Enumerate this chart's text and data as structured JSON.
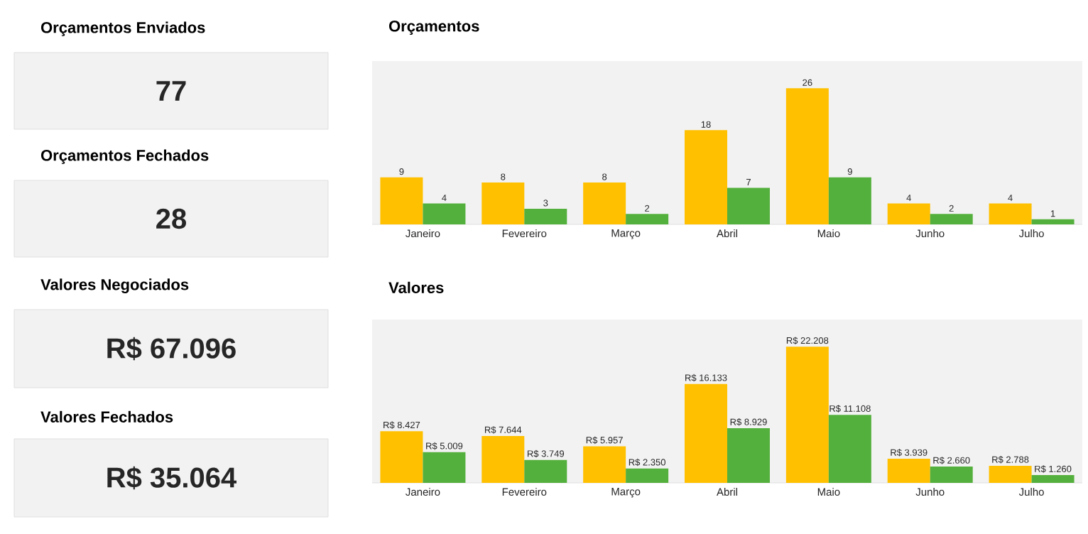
{
  "chart_data": [
    {
      "type": "other",
      "title": "Orçamentos Enviados",
      "annotations": [
        "77"
      ]
    },
    {
      "type": "other",
      "title": "Orçamentos Fechados",
      "annotations": [
        "28"
      ]
    },
    {
      "type": "other",
      "title": "Valores Negociados",
      "annotations": [
        "R$ 67.096"
      ]
    },
    {
      "type": "other",
      "title": "Valores Fechados",
      "annotations": [
        "R$ 35.064"
      ]
    },
    {
      "type": "bar",
      "title": "Orçamentos",
      "categories": [
        "Janeiro",
        "Fevereiro",
        "Março",
        "Abril",
        "Maio",
        "Junho",
        "Julho"
      ],
      "data_labels": true,
      "series": [
        {
          "color": "#ffc000",
          "values": [
            9,
            8,
            8,
            18,
            26,
            4,
            4
          ]
        },
        {
          "color": "#54b03c",
          "values": [
            4,
            3,
            2,
            7,
            9,
            2,
            1
          ]
        }
      ]
    },
    {
      "type": "bar",
      "title": "Valores",
      "categories": [
        "Janeiro",
        "Fevereiro",
        "Março",
        "Abril",
        "Maio",
        "Junho",
        "Julho"
      ],
      "series": [
        {
          "color": "#ffc000",
          "values": [
            8427,
            7644,
            5957,
            16133,
            22208,
            3939,
            2788
          ],
          "value_labels": [
            "R$ 8.427",
            "R$ 7.644",
            "R$ 5.957",
            "R$ 16.133",
            "R$ 22.208",
            "R$ 3.939",
            "R$ 2.788"
          ]
        },
        {
          "color": "#54b03c",
          "values": [
            5009,
            3749,
            2350,
            8929,
            11108,
            2660,
            1260
          ],
          "value_labels": [
            "R$ 5.009",
            "R$ 3.749",
            "R$ 2.350",
            "R$ 8.929",
            "R$ 11.108",
            "R$ 2.660",
            "R$ 1.260"
          ]
        }
      ]
    }
  ]
}
